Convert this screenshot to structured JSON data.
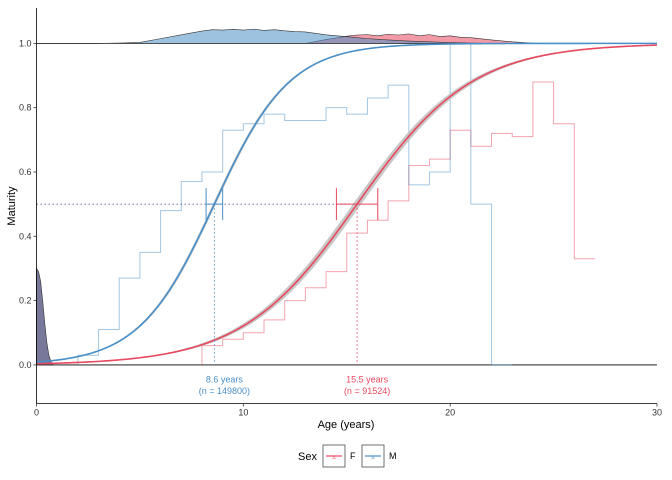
{
  "chart_data": {
    "type": "line",
    "title": "",
    "xlabel": "Age (years)",
    "ylabel": "Maturity",
    "xlim": [
      0,
      30
    ],
    "ylim": [
      -0.12,
      1.11
    ],
    "x_ticks": [
      0,
      10,
      20,
      30
    ],
    "y_ticks": [
      0.0,
      0.2,
      0.4,
      0.6,
      0.8,
      1.0
    ],
    "x_tick_labels": [
      "0",
      "10",
      "20",
      "30"
    ],
    "y_tick_labels": [
      "0.0",
      "0.2",
      "0.4",
      "0.6",
      "0.8",
      "1.0"
    ],
    "grid": false,
    "legend": {
      "title": "Sex",
      "placement": "bottom",
      "entries": [
        {
          "label": "F",
          "color": "#e8495e"
        },
        {
          "label": "M",
          "color": "#4a8fc7"
        }
      ]
    },
    "series": [
      {
        "name": "F",
        "color": "#e8495e",
        "band_color": "#bdbdbd",
        "fit": {
          "a50": 15.5,
          "slope": 0.36,
          "ci_halfwidth": 0.018
        },
        "a50_ci": [
          14.5,
          16.5
        ],
        "annotation": {
          "value": "15.5 years",
          "n": "(n = 91524)"
        },
        "observed_steps": {
          "x": [
            8,
            9,
            10,
            11,
            12,
            13,
            14,
            15,
            16,
            17,
            18,
            19,
            20,
            21,
            22,
            23,
            24,
            25,
            26
          ],
          "y": [
            0.06,
            0.08,
            0.1,
            0.14,
            0.2,
            0.24,
            0.29,
            0.41,
            0.45,
            0.51,
            0.62,
            0.64,
            0.73,
            0.68,
            0.72,
            0.71,
            0.88,
            0.75,
            0.33
          ]
        },
        "density": [
          {
            "x": 13.0,
            "d": 0.0
          },
          {
            "x": 14.0,
            "d": 0.2
          },
          {
            "x": 15.0,
            "d": 0.38
          },
          {
            "x": 15.5,
            "d": 0.44
          },
          {
            "x": 16.0,
            "d": 0.46
          },
          {
            "x": 16.5,
            "d": 0.4
          },
          {
            "x": 17.0,
            "d": 0.48
          },
          {
            "x": 17.5,
            "d": 0.44
          },
          {
            "x": 18.0,
            "d": 0.5
          },
          {
            "x": 18.5,
            "d": 0.4
          },
          {
            "x": 19.0,
            "d": 0.46
          },
          {
            "x": 19.5,
            "d": 0.36
          },
          {
            "x": 20.0,
            "d": 0.4
          },
          {
            "x": 20.5,
            "d": 0.32
          },
          {
            "x": 21.0,
            "d": 0.3
          },
          {
            "x": 22.0,
            "d": 0.18
          },
          {
            "x": 23.0,
            "d": 0.08
          },
          {
            "x": 24.0,
            "d": 0.02
          },
          {
            "x": 25.0,
            "d": 0.0
          }
        ]
      },
      {
        "name": "M",
        "color": "#4a8fc7",
        "band_color": "#bdbdbd",
        "fit": {
          "a50": 8.6,
          "slope": 0.55,
          "ci_halfwidth": 0.01
        },
        "a50_ci": [
          8.2,
          9.0
        ],
        "annotation": {
          "value": "8.6 years",
          "n": "(n = 149800)"
        },
        "observed_steps": {
          "x": [
            2,
            3,
            4,
            5,
            6,
            7,
            8,
            9,
            10,
            11,
            12,
            13,
            14,
            15,
            16,
            17,
            18,
            19,
            20,
            21,
            22
          ],
          "y": [
            0.03,
            0.11,
            0.27,
            0.35,
            0.48,
            0.57,
            0.6,
            0.73,
            0.75,
            0.78,
            0.76,
            0.76,
            0.8,
            0.78,
            0.83,
            0.87,
            0.56,
            0.6,
            1.0,
            0.5,
            0.0
          ]
        },
        "density": [
          {
            "x": 3.0,
            "d": 0.0
          },
          {
            "x": 4.0,
            "d": 0.02
          },
          {
            "x": 5.0,
            "d": 0.05
          },
          {
            "x": 6.0,
            "d": 0.25
          },
          {
            "x": 7.0,
            "d": 0.45
          },
          {
            "x": 7.5,
            "d": 0.55
          },
          {
            "x": 8.0,
            "d": 0.65
          },
          {
            "x": 8.5,
            "d": 0.72
          },
          {
            "x": 9.0,
            "d": 0.7
          },
          {
            "x": 9.5,
            "d": 0.74
          },
          {
            "x": 10.0,
            "d": 0.7
          },
          {
            "x": 10.5,
            "d": 0.75
          },
          {
            "x": 11.0,
            "d": 0.68
          },
          {
            "x": 11.5,
            "d": 0.72
          },
          {
            "x": 12.0,
            "d": 0.66
          },
          {
            "x": 12.5,
            "d": 0.62
          },
          {
            "x": 13.0,
            "d": 0.6
          },
          {
            "x": 14.0,
            "d": 0.45
          },
          {
            "x": 15.0,
            "d": 0.35
          },
          {
            "x": 16.0,
            "d": 0.25
          },
          {
            "x": 17.0,
            "d": 0.18
          },
          {
            "x": 18.0,
            "d": 0.12
          },
          {
            "x": 19.0,
            "d": 0.08
          },
          {
            "x": 20.0,
            "d": 0.04
          },
          {
            "x": 21.0,
            "d": 0.02
          },
          {
            "x": 22.0,
            "d": 0.0
          }
        ]
      }
    ],
    "immature_density": {
      "color": "#4b4b7a",
      "points": [
        {
          "x": 0.0,
          "d": 0.3
        },
        {
          "x": 0.1,
          "d": 0.29
        },
        {
          "x": 0.2,
          "d": 0.26
        },
        {
          "x": 0.3,
          "d": 0.2
        },
        {
          "x": 0.4,
          "d": 0.13
        },
        {
          "x": 0.5,
          "d": 0.07
        },
        {
          "x": 0.6,
          "d": 0.03
        },
        {
          "x": 0.7,
          "d": 0.01
        },
        {
          "x": 0.8,
          "d": 0.0
        }
      ]
    },
    "reference_lines": {
      "y": [
        0.0,
        1.0
      ],
      "a50_y": 0.5
    }
  }
}
